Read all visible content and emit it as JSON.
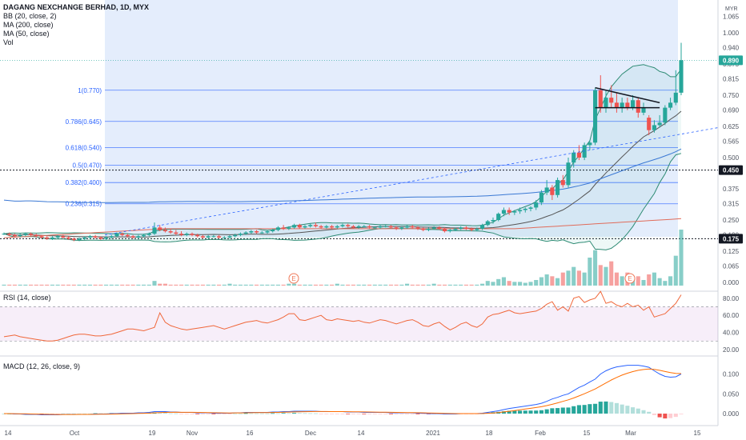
{
  "legend": {
    "title": "DAGANG NEXCHANGE BERHAD, 1D, MYX",
    "bb": "BB (20, close, 2)",
    "ma200": "MA (200, close)",
    "ma50": "MA (50, close)",
    "vol": "Vol"
  },
  "rsi_label": "RSI (14, close)",
  "macd_label": "MACD (12, 26, close, 9)",
  "currency": "MYR",
  "colors": {
    "up": "#26a69a",
    "down": "#ef5350",
    "fib": "#2962ff",
    "bb": "#2e8b74",
    "ma200": "#e06c5b",
    "ma50": "#3a78d4",
    "rsi": "#f0673a",
    "macd": "#2962ff",
    "signal": "#ff6d00",
    "shade": "#dbe7fb"
  },
  "chart_data": [
    {
      "type": "candlestick",
      "pane": "price",
      "ylim": [
        0,
        1.065
      ],
      "yticks": [
        1.065,
        1.0,
        0.94,
        0.875,
        0.815,
        0.75,
        0.69,
        0.625,
        0.565,
        0.5,
        0.44,
        0.375,
        0.315,
        0.25,
        0.19,
        0.125,
        0.065,
        0.0
      ],
      "xticks": [
        "14",
        "Oct",
        "19",
        "Nov",
        "16",
        "Dec",
        "14",
        "2021",
        "18",
        "Feb",
        "15",
        "Mar",
        "15"
      ],
      "last_price": 0.89,
      "price_markers": [
        0.45,
        0.175
      ],
      "fib_levels": [
        {
          "label": "1(0.770)",
          "value": 0.77
        },
        {
          "label": "0.786(0.645)",
          "value": 0.645
        },
        {
          "label": "0.618(0.540)",
          "value": 0.54
        },
        {
          "label": "0.5(0.470)",
          "value": 0.47
        },
        {
          "label": "0.382(0.400)",
          "value": 0.4
        },
        {
          "label": "0.236(0.315)",
          "value": 0.315
        }
      ],
      "candles": [
        [
          0.195,
          0.2,
          0.19,
          0.195
        ],
        [
          0.195,
          0.2,
          0.185,
          0.19
        ],
        [
          0.19,
          0.195,
          0.18,
          0.185
        ],
        [
          0.185,
          0.195,
          0.18,
          0.19
        ],
        [
          0.19,
          0.2,
          0.185,
          0.195
        ],
        [
          0.195,
          0.2,
          0.185,
          0.19
        ],
        [
          0.19,
          0.195,
          0.18,
          0.185
        ],
        [
          0.185,
          0.19,
          0.175,
          0.18
        ],
        [
          0.18,
          0.185,
          0.17,
          0.175
        ],
        [
          0.175,
          0.185,
          0.17,
          0.18
        ],
        [
          0.18,
          0.19,
          0.175,
          0.185
        ],
        [
          0.185,
          0.19,
          0.175,
          0.18
        ],
        [
          0.18,
          0.185,
          0.17,
          0.175
        ],
        [
          0.175,
          0.18,
          0.165,
          0.17
        ],
        [
          0.17,
          0.18,
          0.165,
          0.175
        ],
        [
          0.175,
          0.185,
          0.17,
          0.18
        ],
        [
          0.18,
          0.19,
          0.175,
          0.185
        ],
        [
          0.185,
          0.19,
          0.175,
          0.18
        ],
        [
          0.18,
          0.185,
          0.17,
          0.175
        ],
        [
          0.175,
          0.185,
          0.17,
          0.18
        ],
        [
          0.18,
          0.19,
          0.175,
          0.185
        ],
        [
          0.185,
          0.2,
          0.18,
          0.195
        ],
        [
          0.195,
          0.2,
          0.185,
          0.19
        ],
        [
          0.19,
          0.195,
          0.18,
          0.185
        ],
        [
          0.185,
          0.19,
          0.175,
          0.18
        ],
        [
          0.18,
          0.19,
          0.175,
          0.185
        ],
        [
          0.185,
          0.195,
          0.18,
          0.19
        ],
        [
          0.19,
          0.2,
          0.185,
          0.195
        ],
        [
          0.195,
          0.24,
          0.19,
          0.22
        ],
        [
          0.22,
          0.23,
          0.205,
          0.21
        ],
        [
          0.21,
          0.22,
          0.2,
          0.205
        ],
        [
          0.205,
          0.215,
          0.195,
          0.2
        ],
        [
          0.2,
          0.21,
          0.19,
          0.195
        ],
        [
          0.195,
          0.205,
          0.185,
          0.19
        ],
        [
          0.19,
          0.2,
          0.185,
          0.195
        ],
        [
          0.195,
          0.2,
          0.185,
          0.19
        ],
        [
          0.19,
          0.195,
          0.18,
          0.185
        ],
        [
          0.185,
          0.19,
          0.175,
          0.18
        ],
        [
          0.18,
          0.19,
          0.175,
          0.185
        ],
        [
          0.185,
          0.19,
          0.18,
          0.185
        ],
        [
          0.185,
          0.19,
          0.175,
          0.18
        ],
        [
          0.18,
          0.185,
          0.175,
          0.18
        ],
        [
          0.18,
          0.19,
          0.175,
          0.185
        ],
        [
          0.185,
          0.195,
          0.18,
          0.19
        ],
        [
          0.19,
          0.2,
          0.185,
          0.195
        ],
        [
          0.195,
          0.205,
          0.19,
          0.2
        ],
        [
          0.2,
          0.21,
          0.195,
          0.205
        ],
        [
          0.205,
          0.21,
          0.195,
          0.2
        ],
        [
          0.2,
          0.205,
          0.195,
          0.2
        ],
        [
          0.2,
          0.21,
          0.195,
          0.205
        ],
        [
          0.205,
          0.215,
          0.2,
          0.21
        ],
        [
          0.21,
          0.225,
          0.205,
          0.22
        ],
        [
          0.22,
          0.23,
          0.21,
          0.215
        ],
        [
          0.215,
          0.225,
          0.21,
          0.22
        ],
        [
          0.22,
          0.235,
          0.215,
          0.23
        ],
        [
          0.23,
          0.235,
          0.215,
          0.22
        ],
        [
          0.22,
          0.23,
          0.215,
          0.225
        ],
        [
          0.225,
          0.235,
          0.22,
          0.23
        ],
        [
          0.23,
          0.24,
          0.22,
          0.225
        ],
        [
          0.225,
          0.23,
          0.215,
          0.22
        ],
        [
          0.22,
          0.23,
          0.215,
          0.225
        ],
        [
          0.225,
          0.23,
          0.215,
          0.22
        ],
        [
          0.22,
          0.23,
          0.215,
          0.225
        ],
        [
          0.225,
          0.235,
          0.22,
          0.23
        ],
        [
          0.23,
          0.235,
          0.22,
          0.225
        ],
        [
          0.225,
          0.23,
          0.215,
          0.22
        ],
        [
          0.22,
          0.23,
          0.215,
          0.225
        ],
        [
          0.225,
          0.23,
          0.22,
          0.225
        ],
        [
          0.225,
          0.23,
          0.215,
          0.22
        ],
        [
          0.22,
          0.225,
          0.215,
          0.22
        ],
        [
          0.22,
          0.23,
          0.215,
          0.225
        ],
        [
          0.225,
          0.23,
          0.22,
          0.225
        ],
        [
          0.225,
          0.23,
          0.215,
          0.22
        ],
        [
          0.22,
          0.225,
          0.21,
          0.215
        ],
        [
          0.215,
          0.225,
          0.21,
          0.22
        ],
        [
          0.22,
          0.23,
          0.215,
          0.225
        ],
        [
          0.225,
          0.23,
          0.215,
          0.22
        ],
        [
          0.22,
          0.225,
          0.21,
          0.215
        ],
        [
          0.215,
          0.22,
          0.205,
          0.21
        ],
        [
          0.21,
          0.22,
          0.205,
          0.215
        ],
        [
          0.215,
          0.225,
          0.21,
          0.22
        ],
        [
          0.22,
          0.225,
          0.21,
          0.215
        ],
        [
          0.215,
          0.22,
          0.2,
          0.205
        ],
        [
          0.205,
          0.215,
          0.2,
          0.21
        ],
        [
          0.21,
          0.22,
          0.205,
          0.215
        ],
        [
          0.215,
          0.225,
          0.21,
          0.22
        ],
        [
          0.22,
          0.225,
          0.21,
          0.215
        ],
        [
          0.215,
          0.22,
          0.205,
          0.21
        ],
        [
          0.21,
          0.22,
          0.205,
          0.215
        ],
        [
          0.215,
          0.235,
          0.21,
          0.23
        ],
        [
          0.23,
          0.25,
          0.225,
          0.245
        ],
        [
          0.245,
          0.26,
          0.235,
          0.25
        ],
        [
          0.25,
          0.28,
          0.245,
          0.275
        ],
        [
          0.275,
          0.3,
          0.265,
          0.29
        ],
        [
          0.29,
          0.3,
          0.27,
          0.28
        ],
        [
          0.28,
          0.29,
          0.27,
          0.285
        ],
        [
          0.285,
          0.3,
          0.275,
          0.29
        ],
        [
          0.29,
          0.3,
          0.28,
          0.295
        ],
        [
          0.295,
          0.305,
          0.285,
          0.3
        ],
        [
          0.3,
          0.33,
          0.29,
          0.32
        ],
        [
          0.32,
          0.37,
          0.31,
          0.36
        ],
        [
          0.36,
          0.41,
          0.35,
          0.38
        ],
        [
          0.38,
          0.39,
          0.33,
          0.35
        ],
        [
          0.35,
          0.42,
          0.34,
          0.41
        ],
        [
          0.41,
          0.43,
          0.38,
          0.39
        ],
        [
          0.39,
          0.5,
          0.38,
          0.48
        ],
        [
          0.48,
          0.53,
          0.46,
          0.52
        ],
        [
          0.52,
          0.55,
          0.49,
          0.5
        ],
        [
          0.5,
          0.56,
          0.49,
          0.55
        ],
        [
          0.55,
          0.57,
          0.53,
          0.56
        ],
        [
          0.56,
          0.78,
          0.55,
          0.77
        ],
        [
          0.77,
          0.83,
          0.68,
          0.7
        ],
        [
          0.7,
          0.77,
          0.68,
          0.74
        ],
        [
          0.74,
          0.79,
          0.7,
          0.72
        ],
        [
          0.72,
          0.76,
          0.68,
          0.7
        ],
        [
          0.7,
          0.74,
          0.68,
          0.72
        ],
        [
          0.72,
          0.74,
          0.69,
          0.7
        ],
        [
          0.7,
          0.75,
          0.69,
          0.73
        ],
        [
          0.73,
          0.74,
          0.66,
          0.68
        ],
        [
          0.68,
          0.72,
          0.67,
          0.7
        ],
        [
          0.66,
          0.67,
          0.59,
          0.61
        ],
        [
          0.61,
          0.65,
          0.6,
          0.63
        ],
        [
          0.63,
          0.67,
          0.62,
          0.64
        ],
        [
          0.64,
          0.71,
          0.63,
          0.7
        ],
        [
          0.7,
          0.74,
          0.69,
          0.72
        ],
        [
          0.72,
          0.85,
          0.71,
          0.76
        ],
        [
          0.76,
          0.96,
          0.75,
          0.89
        ]
      ],
      "volume": [
        1,
        1,
        1,
        1,
        1,
        1,
        1,
        1,
        1,
        1,
        1,
        1,
        1,
        1,
        1,
        1,
        1,
        1,
        1,
        1,
        1,
        1,
        1,
        1,
        1,
        1,
        1,
        1,
        5,
        2,
        2,
        1,
        1,
        1,
        1,
        1,
        1,
        1,
        1,
        1,
        1,
        1,
        2,
        1,
        1,
        1,
        1,
        1,
        1,
        1,
        1,
        1,
        1,
        2,
        2,
        1,
        1,
        1,
        1,
        1,
        1,
        1,
        2,
        1,
        1,
        1,
        1,
        1,
        1,
        1,
        1,
        1,
        1,
        1,
        1,
        2,
        1,
        1,
        1,
        1,
        2,
        1,
        1,
        1,
        1,
        1,
        1,
        1,
        1,
        2,
        5,
        4,
        7,
        9,
        5,
        4,
        4,
        3,
        4,
        6,
        9,
        12,
        10,
        8,
        14,
        16,
        20,
        16,
        14,
        30,
        38,
        22,
        20,
        26,
        14,
        10,
        14,
        8,
        10,
        6,
        12,
        14,
        8,
        5,
        10,
        32,
        60
      ]
    },
    {
      "type": "line",
      "pane": "RSI",
      "ylim": [
        20,
        90
      ],
      "yticks": [
        80.0,
        60.0,
        40.0,
        20.0
      ],
      "bands": [
        70,
        30
      ],
      "values": [
        35,
        36,
        37,
        35,
        34,
        33,
        32,
        31,
        30,
        30,
        31,
        33,
        35,
        37,
        38,
        38,
        37,
        36,
        36,
        37,
        38,
        40,
        42,
        44,
        44,
        43,
        42,
        44,
        46,
        63,
        52,
        48,
        46,
        44,
        43,
        44,
        45,
        46,
        47,
        48,
        46,
        44,
        46,
        48,
        50,
        52,
        53,
        54,
        52,
        51,
        53,
        55,
        58,
        62,
        62,
        55,
        54,
        56,
        58,
        60,
        55,
        54,
        56,
        55,
        54,
        53,
        54,
        52,
        51,
        53,
        55,
        54,
        52,
        50,
        52,
        54,
        55,
        52,
        48,
        47,
        50,
        52,
        47,
        43,
        46,
        50,
        52,
        48,
        46,
        50,
        58,
        61,
        62,
        64,
        66,
        63,
        62,
        63,
        64,
        65,
        68,
        73,
        76,
        66,
        70,
        65,
        80,
        82,
        75,
        78,
        80,
        88,
        74,
        76,
        72,
        70,
        74,
        70,
        72,
        66,
        70,
        58,
        60,
        62,
        68,
        74,
        84
      ]
    },
    {
      "type": "macd",
      "pane": "MACD",
      "ylim": [
        -0.03,
        0.13
      ],
      "yticks": [
        0.1,
        0.05,
        0.0
      ],
      "macd": [
        0.0,
        0.0,
        -0.001,
        -0.001,
        -0.002,
        -0.002,
        -0.002,
        -0.003,
        -0.003,
        -0.003,
        -0.003,
        -0.002,
        -0.002,
        -0.002,
        -0.002,
        -0.002,
        -0.002,
        -0.001,
        -0.001,
        -0.001,
        0.0,
        0.0,
        0.001,
        0.001,
        0.001,
        0.002,
        0.002,
        0.003,
        0.005,
        0.005,
        0.005,
        0.004,
        0.004,
        0.003,
        0.003,
        0.003,
        0.002,
        0.002,
        0.002,
        0.001,
        0.001,
        0.001,
        0.001,
        0.002,
        0.002,
        0.003,
        0.003,
        0.003,
        0.003,
        0.003,
        0.004,
        0.004,
        0.005,
        0.005,
        0.006,
        0.006,
        0.006,
        0.006,
        0.006,
        0.005,
        0.005,
        0.005,
        0.005,
        0.005,
        0.004,
        0.004,
        0.004,
        0.003,
        0.003,
        0.003,
        0.003,
        0.003,
        0.002,
        0.002,
        0.002,
        0.002,
        0.002,
        0.001,
        0.001,
        0.0,
        0.0,
        0.0,
        -0.001,
        -0.001,
        -0.001,
        0.0,
        0.0,
        0.0,
        0.0,
        0.001,
        0.003,
        0.005,
        0.007,
        0.01,
        0.013,
        0.015,
        0.017,
        0.019,
        0.021,
        0.023,
        0.026,
        0.031,
        0.037,
        0.041,
        0.046,
        0.05,
        0.058,
        0.066,
        0.072,
        0.08,
        0.087,
        0.1,
        0.108,
        0.114,
        0.118,
        0.12,
        0.122,
        0.122,
        0.122,
        0.12,
        0.117,
        0.108,
        0.1,
        0.094,
        0.092,
        0.093,
        0.1
      ]
    }
  ]
}
